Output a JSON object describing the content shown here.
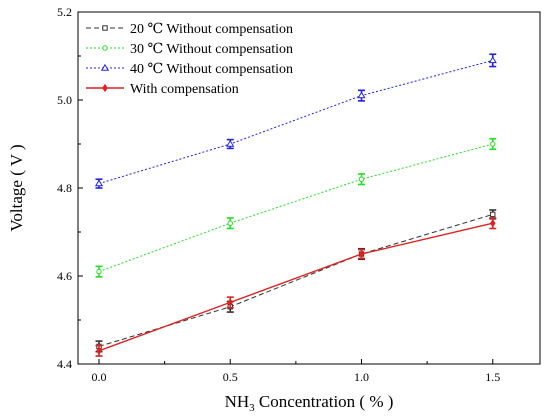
{
  "chart_data": {
    "type": "line",
    "xlabel": "NH",
    "xlabel_sub": "3",
    "xlabel_rest": " Concentration ( % )",
    "ylabel": "Voltage ( V )",
    "x": [
      0.0,
      0.5,
      1.0,
      1.5
    ],
    "xlim": [
      -0.08,
      1.68
    ],
    "ylim": [
      4.4,
      5.2
    ],
    "x_ticks": [
      0.0,
      0.5,
      1.0,
      1.5
    ],
    "x_tick_labels": [
      "0.0",
      "0.5",
      "1.0",
      "1.5"
    ],
    "y_ticks": [
      4.4,
      4.6,
      4.8,
      5.0,
      5.2
    ],
    "y_tick_labels": [
      "4.4",
      "4.6",
      "4.8",
      "5.0",
      "5.2"
    ],
    "grid": false,
    "legend_position": "top-left",
    "series": [
      {
        "name": "20 ℃ Without compensation",
        "color": "#333333",
        "dash": "dashed",
        "marker": "open-square",
        "values": [
          4.44,
          4.53,
          4.65,
          4.74
        ],
        "errors": [
          0.012,
          0.012,
          0.012,
          0.01
        ]
      },
      {
        "name": "30 ℃ Without compensation",
        "color": "#22e022",
        "dash": "dotted",
        "marker": "open-circle",
        "values": [
          4.61,
          4.72,
          4.82,
          4.9
        ],
        "errors": [
          0.012,
          0.012,
          0.012,
          0.012
        ]
      },
      {
        "name": "40 ℃ Without compensation",
        "color": "#2222dd",
        "dash": "dotted",
        "marker": "open-triangle",
        "values": [
          4.81,
          4.9,
          5.01,
          5.09
        ],
        "errors": [
          0.01,
          0.01,
          0.012,
          0.014
        ]
      },
      {
        "name": "With compensation",
        "color": "#dd2222",
        "dash": "solid",
        "marker": "filled-diamond",
        "values": [
          4.43,
          4.54,
          4.65,
          4.72
        ],
        "errors": [
          0.012,
          0.012,
          0.01,
          0.012
        ]
      }
    ]
  }
}
